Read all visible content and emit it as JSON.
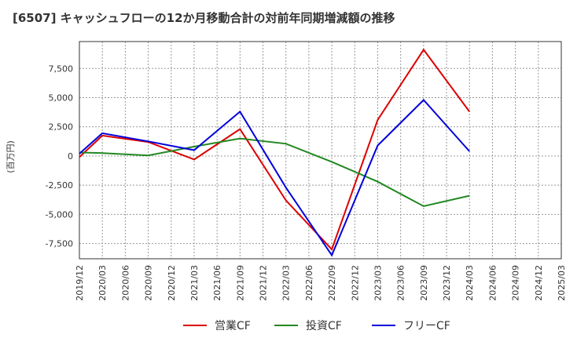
{
  "chart_data": {
    "type": "line",
    "title": "[6507]  キャッシュフローの12か月移動合計の対前年同期増減額の推移",
    "ylabel": "(百万円)",
    "xlabel": "",
    "ylim": [
      -8800,
      9800
    ],
    "yticks": [
      -7500,
      -5000,
      -2500,
      0,
      2500,
      5000,
      7500
    ],
    "ytick_labels": [
      "-7,500",
      "-5,000",
      "-2,500",
      "0",
      "2,500",
      "5,000",
      "7,500"
    ],
    "x_tick_labels": [
      "2019/12",
      "2020/03",
      "2020/06",
      "2020/09",
      "2020/12",
      "2021/03",
      "2021/06",
      "2021/09",
      "2021/12",
      "2022/03",
      "2022/06",
      "2022/09",
      "2022/12",
      "2023/03",
      "2023/06",
      "2023/09",
      "2023/12",
      "2024/03",
      "2024/06",
      "2024/09",
      "2024/12",
      "2025/03"
    ],
    "x": [
      "2019/12",
      "2020/03",
      "2020/09",
      "2021/03",
      "2021/09",
      "2022/03",
      "2022/09",
      "2023/03",
      "2023/09",
      "2024/03"
    ],
    "grid": true,
    "legend_position": "bottom",
    "series": [
      {
        "name": "営業CF",
        "color": "#dd0000",
        "values": [
          -100,
          1750,
          1200,
          -300,
          2300,
          -3800,
          -8000,
          3100,
          9100,
          3800
        ]
      },
      {
        "name": "投資CF",
        "color": "#228822",
        "values": [
          300,
          250,
          50,
          800,
          1500,
          1050,
          -500,
          -2200,
          -4300,
          -3400
        ]
      },
      {
        "name": "フリーCF",
        "color": "#0000dd",
        "values": [
          200,
          1950,
          1250,
          500,
          3800,
          -2700,
          -8500,
          900,
          4800,
          400
        ]
      }
    ]
  }
}
